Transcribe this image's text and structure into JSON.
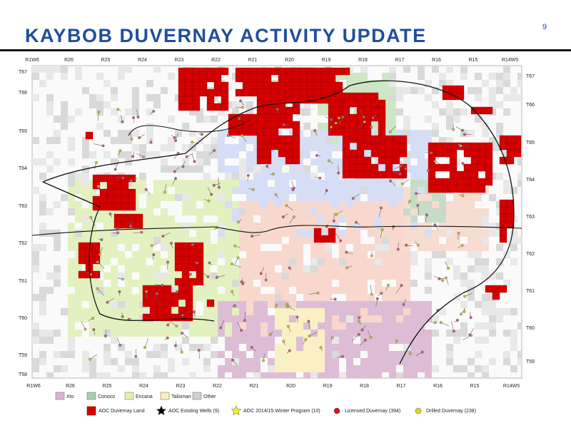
{
  "header": {
    "title": "KAYBOB DUVERNAY ACTIVITY UPDATE",
    "page_number": "9"
  },
  "map": {
    "ranges_top": [
      "R1W6",
      "R26",
      "R25",
      "R24",
      "R23",
      "R22",
      "R21",
      "R20",
      "R19",
      "R18",
      "R17",
      "R16",
      "R15",
      "R14W5"
    ],
    "ranges_bottom": [
      "R1W6",
      "R26",
      "R25",
      "R24",
      "R23",
      "R22",
      "R21",
      "R20",
      "R19",
      "R18",
      "R17",
      "R16",
      "R15",
      "R14W5"
    ],
    "townships_left": [
      "T67",
      "T66",
      "T65",
      "T64",
      "T63",
      "T62",
      "T61",
      "T60",
      "T59",
      "T58"
    ],
    "townships_right": [
      "T67",
      "T66",
      "T65",
      "T64",
      "T63",
      "T62",
      "T61",
      "T60",
      "T59"
    ]
  },
  "legend": {
    "operators": [
      "Xto",
      "Conoco",
      "Encana",
      "Talisman",
      "Other"
    ],
    "symbols": [
      "AOC Duvernay Land",
      "AOC Existing Wells (9)",
      "AOC 2014/15 Winter Program (10)",
      "Licensed Duvernay (394)",
      "Drilled Duvernay (238)"
    ]
  }
}
